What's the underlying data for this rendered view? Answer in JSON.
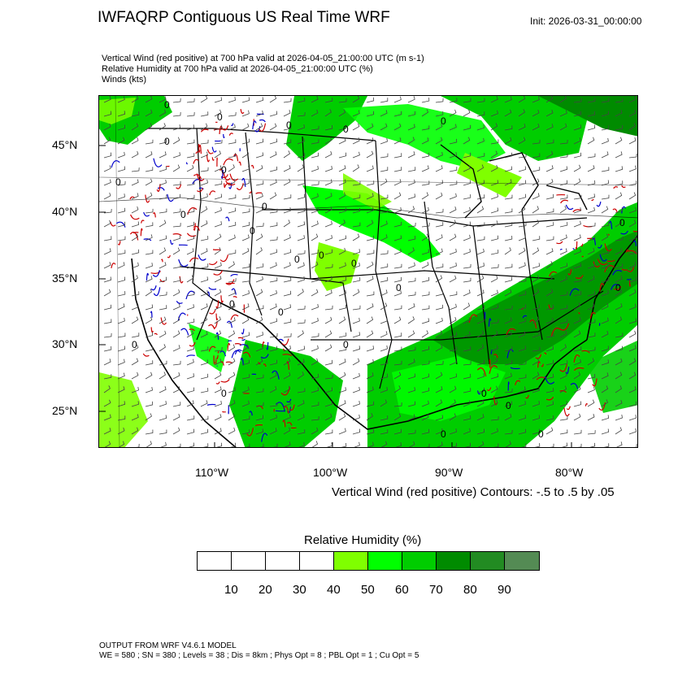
{
  "header": {
    "title": "IWFAQRP Contiguous US Real Time WRF",
    "init": "Init: 2026-03-31_00:00:00",
    "fields": [
      "Vertical Wind (red positive) at 700 hPa valid at 2026-04-05_21:00:00 UTC   (m s-1)",
      "Relative Humidity at 700 hPa valid at 2026-04-05_21:00:00 UTC   (%)",
      "Winds   (kts)"
    ]
  },
  "map": {
    "lat_labels": [
      "45°N",
      "40°N",
      "35°N",
      "30°N",
      "25°N"
    ],
    "lon_labels": [
      "110°W",
      "100°W",
      "90°W",
      "80°W"
    ],
    "contour_label": "0",
    "contour_note": "Vertical Wind (red positive) Contours: -.5 to .5 by .05",
    "colors": {
      "rh_50": "#7fff00",
      "rh_60": "#00ff00",
      "rh_70": "#00cd00",
      "rh_80": "#008b00",
      "rh_90": "#228b22",
      "rh_high": "#548b54",
      "updraft": "#cc0000",
      "downdraft": "#0000cc",
      "border": "#000000"
    }
  },
  "legend": {
    "title": "Relative Humidity  (%)",
    "colors": [
      "#ffffff",
      "#ffffff",
      "#ffffff",
      "#ffffff",
      "#7fff00",
      "#00ff00",
      "#00cd00",
      "#008b00",
      "#228b22",
      "#548b54"
    ],
    "labels": [
      "10",
      "20",
      "30",
      "40",
      "50",
      "60",
      "70",
      "80",
      "90"
    ]
  },
  "footer": {
    "line1": "OUTPUT FROM WRF V4.6.1 MODEL",
    "line2": "WE = 580 ; SN = 380 ; Levels = 38 ; Dis = 8km ; Phys Opt = 8 ; PBL Opt = 1 ; Cu Opt = 5"
  }
}
